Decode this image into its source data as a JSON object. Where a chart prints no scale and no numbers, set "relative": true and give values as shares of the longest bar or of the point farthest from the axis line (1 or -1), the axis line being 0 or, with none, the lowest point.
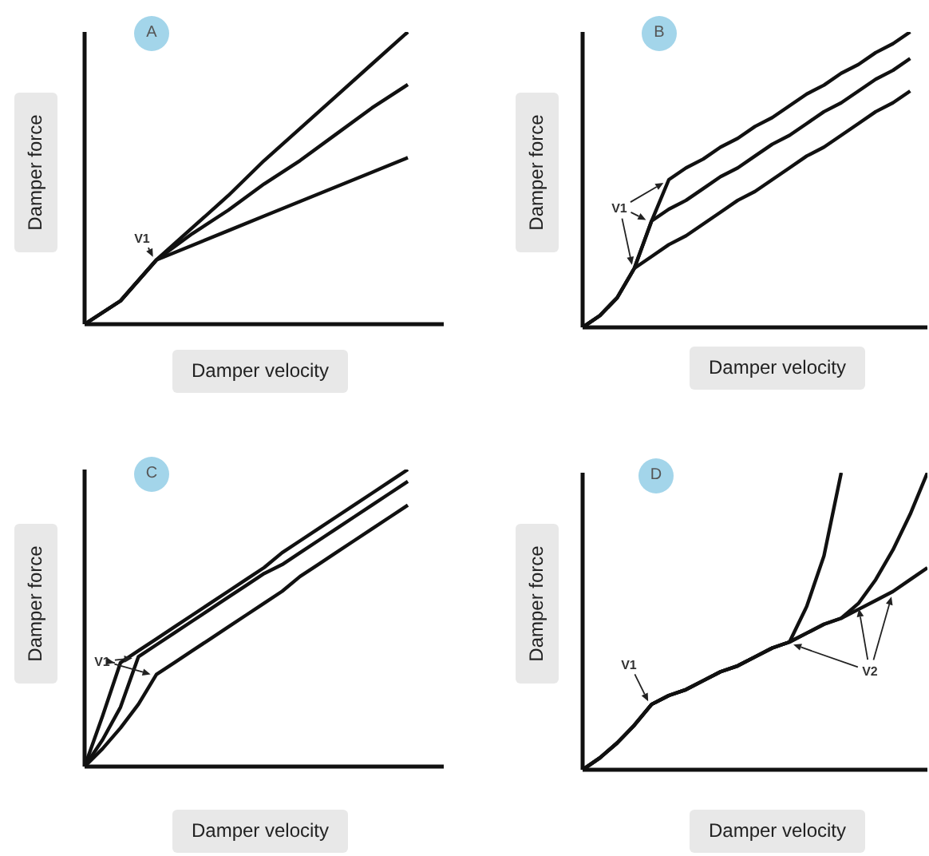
{
  "chart_data": [
    {
      "type": "line",
      "title": "A",
      "xlabel": "Damper velocity",
      "ylabel": "Damper force",
      "relative": true,
      "categories": [
        null,
        null,
        null,
        null,
        null,
        null,
        null,
        null,
        null,
        null,
        null
      ],
      "series": [
        {
          "color": "#111111",
          "values": [
            0,
            0.08,
            0.22,
            0.33,
            0.44,
            0.56,
            0.67,
            0.78,
            0.89,
            1.0,
            null
          ]
        },
        {
          "color": "#111111",
          "values": [
            0,
            0.08,
            0.22,
            0.31,
            0.39,
            0.48,
            0.56,
            0.65,
            0.74,
            0.82,
            null
          ]
        },
        {
          "color": "#111111",
          "values": [
            0,
            0.08,
            0.22,
            0.27,
            0.32,
            0.37,
            0.42,
            0.47,
            0.52,
            0.57,
            null
          ]
        }
      ],
      "annotations": [
        "V1"
      ]
    },
    {
      "type": "line",
      "title": "B",
      "xlabel": "Damper velocity",
      "ylabel": "Damper force",
      "relative": true,
      "categories": [
        null,
        null,
        null,
        null,
        null,
        null,
        null,
        null,
        null,
        null,
        null,
        null,
        null,
        null,
        null,
        null,
        null,
        null,
        null,
        null,
        null
      ],
      "series": [
        {
          "color": "#111111",
          "values": [
            0,
            0.04,
            0.1,
            0.2,
            0.36,
            0.5,
            0.54,
            0.57,
            0.61,
            0.64,
            0.68,
            0.71,
            0.75,
            0.79,
            0.82,
            0.86,
            0.89,
            0.93,
            0.96,
            1.0,
            null
          ]
        },
        {
          "color": "#111111",
          "values": [
            0,
            0.04,
            0.1,
            0.2,
            0.36,
            0.4,
            0.43,
            0.47,
            0.51,
            0.54,
            0.58,
            0.62,
            0.65,
            0.69,
            0.73,
            0.76,
            0.8,
            0.84,
            0.87,
            0.91,
            null
          ]
        },
        {
          "color": "#111111",
          "values": [
            0,
            0.04,
            0.1,
            0.2,
            0.24,
            0.28,
            0.31,
            0.35,
            0.39,
            0.43,
            0.46,
            0.5,
            0.54,
            0.58,
            0.61,
            0.65,
            0.69,
            0.73,
            0.76,
            0.8,
            null
          ]
        }
      ],
      "annotations": [
        "V1"
      ]
    },
    {
      "type": "line",
      "title": "C",
      "xlabel": "Damper velocity",
      "ylabel": "Damper force",
      "relative": true,
      "categories": [
        null,
        null,
        null,
        null,
        null,
        null,
        null,
        null,
        null,
        null,
        null,
        null,
        null,
        null,
        null,
        null,
        null,
        null,
        null,
        null,
        null
      ],
      "series": [
        {
          "color": "#111111",
          "values": [
            0,
            0.17,
            0.35,
            0.39,
            0.43,
            0.47,
            0.51,
            0.55,
            0.59,
            0.63,
            0.67,
            0.72,
            0.76,
            0.8,
            0.84,
            0.88,
            0.92,
            0.96,
            1.0,
            null,
            null
          ]
        },
        {
          "color": "#111111",
          "values": [
            0,
            0.09,
            0.2,
            0.37,
            0.41,
            0.45,
            0.49,
            0.53,
            0.57,
            0.61,
            0.65,
            0.68,
            0.72,
            0.76,
            0.8,
            0.84,
            0.88,
            0.92,
            0.96,
            null,
            null
          ]
        },
        {
          "color": "#111111",
          "values": [
            0,
            0.06,
            0.13,
            0.21,
            0.31,
            0.35,
            0.39,
            0.43,
            0.47,
            0.51,
            0.55,
            0.59,
            0.64,
            0.68,
            0.72,
            0.76,
            0.8,
            0.84,
            0.88,
            null,
            null
          ]
        }
      ],
      "annotations": [
        "V1"
      ]
    },
    {
      "type": "line",
      "title": "D",
      "xlabel": "Damper velocity",
      "ylabel": "Damper force",
      "relative": true,
      "categories": [
        null,
        null,
        null,
        null,
        null,
        null,
        null,
        null,
        null,
        null,
        null,
        null,
        null,
        null,
        null,
        null,
        null,
        null,
        null,
        null,
        null
      ],
      "series": [
        {
          "color": "#111111",
          "values": [
            0,
            0.04,
            0.09,
            0.15,
            0.22,
            0.25,
            0.27,
            0.3,
            0.33,
            0.35,
            0.38,
            0.41,
            0.43,
            0.55,
            0.72,
            1.0,
            null,
            null,
            null,
            null,
            null
          ]
        },
        {
          "color": "#111111",
          "values": [
            0,
            0.04,
            0.09,
            0.15,
            0.22,
            0.25,
            0.27,
            0.3,
            0.33,
            0.35,
            0.38,
            0.41,
            0.43,
            0.46,
            0.49,
            0.51,
            0.56,
            0.64,
            0.74,
            0.86,
            1.0
          ]
        },
        {
          "color": "#111111",
          "values": [
            0,
            0.04,
            0.09,
            0.15,
            0.22,
            0.25,
            0.27,
            0.3,
            0.33,
            0.35,
            0.38,
            0.41,
            0.43,
            0.46,
            0.49,
            0.51,
            0.54,
            0.57,
            0.6,
            0.64,
            0.68
          ]
        }
      ],
      "annotations": [
        "V1",
        "V2"
      ]
    }
  ]
}
